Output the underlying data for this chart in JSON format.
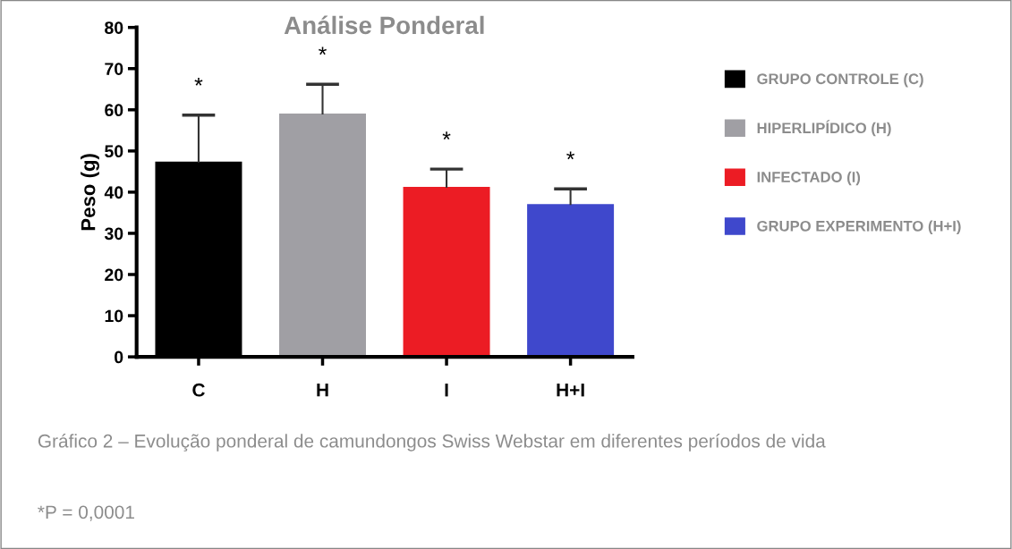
{
  "chart_data": {
    "type": "bar",
    "title": "Análise Ponderal",
    "ylabel": "Peso (g)",
    "categories": [
      "C",
      "H",
      "I",
      "H+I"
    ],
    "series": [
      {
        "name": "GRUPO CONTROLE (C)",
        "color": "#000000",
        "values": [
          47.4,
          null,
          null,
          null
        ],
        "errors": [
          [
            47.4,
            58.7
          ],
          null,
          null,
          null
        ]
      },
      {
        "name": "HIPERLIPÍDICO (H)",
        "color": "#a09fa4",
        "values": [
          null,
          59.1,
          null,
          null
        ],
        "errors": [
          null,
          [
            59.1,
            66.2
          ],
          null,
          null
        ]
      },
      {
        "name": "INFECTADO (I)",
        "color": "#ec1c24",
        "values": [
          null,
          null,
          41.3,
          null
        ],
        "errors": [
          null,
          null,
          [
            41.3,
            45.6
          ],
          null
        ]
      },
      {
        "name": "GRUPO EXPERIMENTO (H+I)",
        "color": "#3f48cc",
        "values": [
          null,
          null,
          null,
          37.1
        ],
        "errors": [
          null,
          null,
          null,
          [
            37.1,
            40.8
          ]
        ]
      }
    ],
    "ylim": [
      0,
      80
    ],
    "yticks": [
      0,
      10,
      20,
      30,
      40,
      50,
      60,
      70,
      80
    ],
    "grid": false,
    "legend": "right",
    "annotations": [
      "*",
      "*",
      "*",
      "*",
      "Gráfico 2 – Evolução ponderal de camundongos Swiss Webstar em diferentes períodos de vida",
      "*P = 0,0001"
    ]
  }
}
